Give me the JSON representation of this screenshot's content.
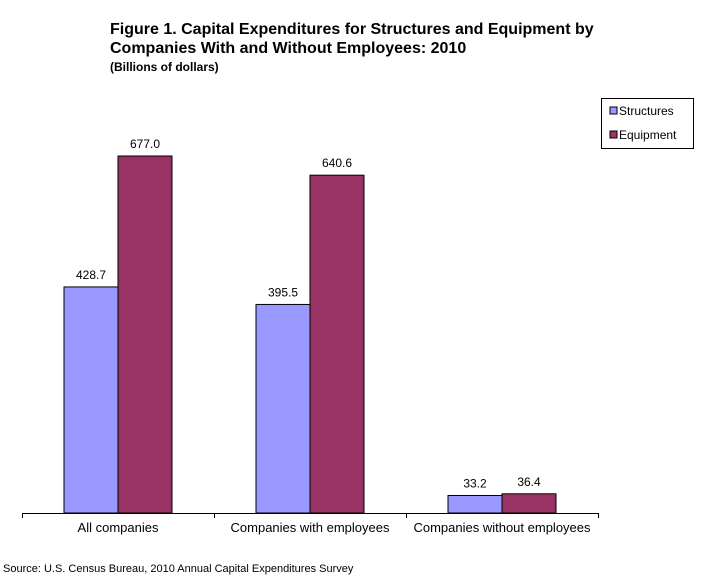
{
  "chart_data": {
    "type": "bar",
    "title": "Figure 1. Capital Expenditures for Structures and Equipment by Companies With and Without Employees: 2010",
    "subtitle": "(Billions of dollars)",
    "categories": [
      "All companies",
      "Companies with employees",
      "Companies without employees"
    ],
    "series": [
      {
        "name": "Structures",
        "values": [
          428.7,
          395.5,
          33.2
        ],
        "color": "#9999ff"
      },
      {
        "name": "Equipment",
        "values": [
          677.0,
          640.6,
          36.4
        ],
        "color": "#993366"
      }
    ],
    "data_labels": [
      [
        "428.7",
        "395.5",
        "33.2"
      ],
      [
        "677.0",
        "640.6",
        "36.4"
      ]
    ],
    "ylim": [
      0,
      800
    ],
    "grid": false,
    "legend_position": "top-right",
    "source": "Source: U.S. Census Bureau, 2010 Annual Capital Expenditures Survey"
  }
}
